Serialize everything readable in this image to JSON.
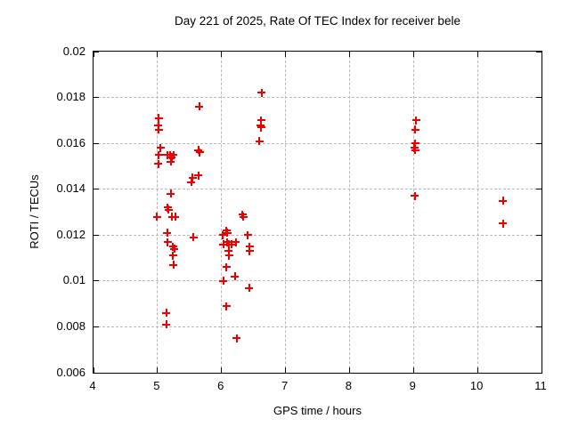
{
  "chart_data": {
    "type": "scatter",
    "title": "Day 221 of 2025, Rate Of TEC Index for receiver bele",
    "xlabel": "GPS time / hours",
    "ylabel": "ROTI / TECUs",
    "xlim": [
      4,
      11
    ],
    "ylim": [
      0.006,
      0.02
    ],
    "xticks": [
      4,
      5,
      6,
      7,
      8,
      9,
      10,
      11
    ],
    "xtick_labels": [
      "4",
      "5",
      "6",
      "7",
      "8",
      "9",
      "10",
      "11"
    ],
    "yticks": [
      0.006,
      0.008,
      0.01,
      0.012,
      0.014,
      0.016,
      0.018,
      0.02
    ],
    "ytick_labels": [
      "0.006",
      "0.008",
      "0.01",
      "0.012",
      "0.014",
      "0.016",
      "0.018",
      "0.02"
    ],
    "grid": true,
    "legend": "none",
    "marker": "plus",
    "marker_color": "#ee0000",
    "grid_color": "#b8b8b8",
    "border_color": "#000000",
    "background_color": "#ffffff",
    "series": [
      {
        "name": "ROTI",
        "points": [
          [
            5.02,
            0.0171
          ],
          [
            5.01,
            0.0168
          ],
          [
            5.02,
            0.0166
          ],
          [
            5.05,
            0.0158
          ],
          [
            5.02,
            0.0155
          ],
          [
            5.01,
            0.0151
          ],
          [
            5.15,
            0.0155
          ],
          [
            5.19,
            0.0155
          ],
          [
            5.22,
            0.0154
          ],
          [
            5.25,
            0.0155
          ],
          [
            5.21,
            0.0152
          ],
          [
            5.21,
            0.0138
          ],
          [
            5.16,
            0.0132
          ],
          [
            5.17,
            0.0131
          ],
          [
            4.99,
            0.0128
          ],
          [
            5.23,
            0.0128
          ],
          [
            5.28,
            0.0128
          ],
          [
            5.15,
            0.0121
          ],
          [
            5.16,
            0.0117
          ],
          [
            5.24,
            0.0115
          ],
          [
            5.26,
            0.0114
          ],
          [
            5.24,
            0.0111
          ],
          [
            5.25,
            0.0107
          ],
          [
            5.14,
            0.0086
          ],
          [
            5.14,
            0.0081
          ],
          [
            5.65,
            0.0176
          ],
          [
            5.64,
            0.0157
          ],
          [
            5.66,
            0.0156
          ],
          [
            5.64,
            0.0146
          ],
          [
            5.55,
            0.0145
          ],
          [
            5.53,
            0.0143
          ],
          [
            5.56,
            0.0119
          ],
          [
            6.63,
            0.0182
          ],
          [
            6.62,
            0.017
          ],
          [
            6.61,
            0.0168
          ],
          [
            6.62,
            0.0167
          ],
          [
            6.59,
            0.0161
          ],
          [
            6.33,
            0.0129
          ],
          [
            6.34,
            0.0128
          ],
          [
            6.08,
            0.0122
          ],
          [
            6.09,
            0.0121
          ],
          [
            6.02,
            0.012
          ],
          [
            6.41,
            0.012
          ],
          [
            6.22,
            0.0117
          ],
          [
            6.03,
            0.0116
          ],
          [
            6.09,
            0.0117
          ],
          [
            6.11,
            0.0116
          ],
          [
            6.16,
            0.0116
          ],
          [
            6.44,
            0.0115
          ],
          [
            6.44,
            0.0113
          ],
          [
            6.11,
            0.0113
          ],
          [
            6.12,
            0.0111
          ],
          [
            6.08,
            0.0106
          ],
          [
            6.21,
            0.0102
          ],
          [
            6.03,
            0.01
          ],
          [
            6.43,
            0.0097
          ],
          [
            6.08,
            0.0089
          ],
          [
            6.24,
            0.0075
          ],
          [
            9.04,
            0.017
          ],
          [
            9.03,
            0.0166
          ],
          [
            9.03,
            0.016
          ],
          [
            9.01,
            0.0158
          ],
          [
            9.03,
            0.0157
          ],
          [
            9.02,
            0.0137
          ],
          [
            10.4,
            0.0135
          ],
          [
            10.4,
            0.0125
          ]
        ]
      }
    ]
  }
}
